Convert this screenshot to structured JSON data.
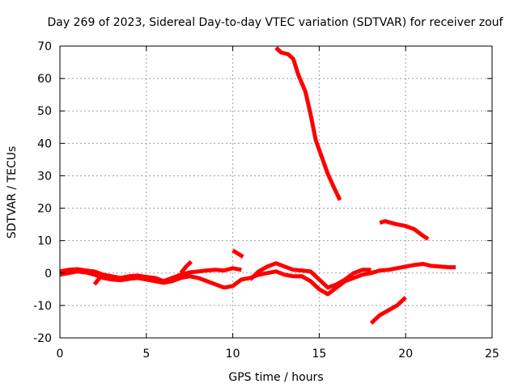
{
  "chart_data": {
    "type": "line",
    "title": "Day 269 of 2023, Sidereal Day-to-day VTEC variation (SDTVAR) for receiver zouf",
    "xlabel": "GPS time / hours",
    "ylabel": "SDTVAR / TECUs",
    "xlim": [
      0,
      25
    ],
    "ylim": [
      -20,
      70
    ],
    "xticks": [
      0,
      5,
      10,
      15,
      20,
      25
    ],
    "yticks": [
      -20,
      -10,
      0,
      10,
      20,
      30,
      40,
      50,
      60,
      70
    ],
    "grid": true,
    "series_color": "#ff0000",
    "series": [
      {
        "name": "track-1",
        "points": [
          [
            0.0,
            0.5
          ],
          [
            0.5,
            1.0
          ],
          [
            1.0,
            1.2
          ],
          [
            1.5,
            0.8
          ],
          [
            2.0,
            0.5
          ],
          [
            2.5,
            -0.5
          ],
          [
            3.0,
            -1.0
          ],
          [
            3.5,
            -1.5
          ],
          [
            4.0,
            -1.0
          ],
          [
            4.5,
            -0.8
          ],
          [
            5.0,
            -1.2
          ],
          [
            5.5,
            -1.5
          ],
          [
            6.0,
            -2.5
          ],
          [
            6.5,
            -1.5
          ],
          [
            7.0,
            -0.5
          ],
          [
            7.5,
            0.2
          ],
          [
            8.0,
            0.5
          ],
          [
            8.5,
            0.8
          ],
          [
            9.0,
            1.0
          ],
          [
            9.5,
            0.8
          ],
          [
            10.0,
            1.5
          ],
          [
            10.5,
            1.0
          ]
        ]
      },
      {
        "name": "track-2",
        "points": [
          [
            0.0,
            -0.5
          ],
          [
            0.5,
            0.0
          ],
          [
            1.0,
            0.5
          ],
          [
            1.5,
            0.2
          ],
          [
            2.0,
            -0.5
          ],
          [
            2.5,
            -1.5
          ],
          [
            3.0,
            -2.0
          ],
          [
            3.5,
            -2.2
          ],
          [
            4.0,
            -1.8
          ],
          [
            4.5,
            -1.5
          ],
          [
            5.0,
            -2.0
          ],
          [
            5.5,
            -2.5
          ],
          [
            6.0,
            -3.0
          ],
          [
            6.5,
            -2.5
          ],
          [
            7.0,
            -1.5
          ],
          [
            7.5,
            -1.0
          ],
          [
            8.0,
            -1.5
          ],
          [
            8.5,
            -2.5
          ],
          [
            9.0,
            -3.5
          ],
          [
            9.5,
            -4.5
          ],
          [
            10.0,
            -4.0
          ],
          [
            10.5,
            -2.0
          ],
          [
            11.0,
            -1.5
          ],
          [
            11.5,
            -0.5
          ],
          [
            12.0,
            0.0
          ],
          [
            12.5,
            0.5
          ],
          [
            13.0,
            -0.5
          ],
          [
            13.5,
            -1.0
          ],
          [
            14.0,
            -1.0
          ],
          [
            14.5,
            -2.5
          ],
          [
            15.0,
            -5.0
          ],
          [
            15.5,
            -6.5
          ],
          [
            16.0,
            -4.5
          ],
          [
            16.5,
            -2.5
          ],
          [
            17.0,
            -1.5
          ],
          [
            17.5,
            -0.5
          ],
          [
            18.0,
            0.0
          ],
          [
            18.5,
            0.8
          ],
          [
            19.0,
            1.0
          ],
          [
            19.5,
            1.5
          ],
          [
            20.0,
            2.0
          ],
          [
            20.5,
            2.5
          ],
          [
            21.0,
            2.8
          ],
          [
            21.5,
            2.2
          ],
          [
            22.0,
            2.0
          ],
          [
            22.5,
            1.8
          ],
          [
            22.9,
            1.8
          ]
        ]
      },
      {
        "name": "track-3",
        "points": [
          [
            2.0,
            -3.5
          ],
          [
            2.3,
            -1.5
          ],
          [
            2.6,
            -0.5
          ]
        ]
      },
      {
        "name": "track-4",
        "points": [
          [
            7.0,
            0.0
          ],
          [
            7.3,
            2.0
          ],
          [
            7.6,
            3.5
          ]
        ]
      },
      {
        "name": "track-5",
        "points": [
          [
            10.0,
            7.0
          ],
          [
            10.3,
            6.0
          ],
          [
            10.6,
            5.0
          ]
        ]
      },
      {
        "name": "track-6",
        "points": [
          [
            11.0,
            -2.0
          ],
          [
            11.5,
            0.5
          ],
          [
            12.0,
            2.0
          ],
          [
            12.5,
            3.0
          ],
          [
            13.0,
            2.0
          ],
          [
            13.5,
            1.0
          ],
          [
            14.0,
            0.8
          ],
          [
            14.5,
            0.5
          ],
          [
            15.0,
            -2.0
          ],
          [
            15.5,
            -4.5
          ],
          [
            16.0,
            -3.5
          ],
          [
            16.5,
            -2.0
          ],
          [
            17.0,
            0.0
          ],
          [
            17.5,
            1.0
          ],
          [
            18.0,
            1.0
          ]
        ]
      },
      {
        "name": "track-7",
        "points": [
          [
            12.5,
            69.5
          ],
          [
            12.8,
            68.0
          ],
          [
            13.2,
            67.5
          ],
          [
            13.5,
            66.0
          ],
          [
            13.8,
            61.0
          ],
          [
            14.2,
            56.0
          ],
          [
            14.5,
            49.0
          ],
          [
            14.8,
            41.0
          ],
          [
            15.2,
            35.0
          ],
          [
            15.5,
            30.5
          ],
          [
            15.8,
            27.0
          ],
          [
            16.2,
            22.5
          ]
        ]
      },
      {
        "name": "track-8",
        "points": [
          [
            18.5,
            15.5
          ],
          [
            18.8,
            16.0
          ],
          [
            19.5,
            15.0
          ],
          [
            20.0,
            14.5
          ],
          [
            20.5,
            13.5
          ],
          [
            21.0,
            11.5
          ],
          [
            21.3,
            10.5
          ]
        ]
      },
      {
        "name": "track-9",
        "points": [
          [
            18.0,
            -15.5
          ],
          [
            18.5,
            -13.0
          ],
          [
            19.0,
            -11.5
          ],
          [
            19.5,
            -10.0
          ],
          [
            20.0,
            -7.5
          ]
        ]
      }
    ]
  }
}
